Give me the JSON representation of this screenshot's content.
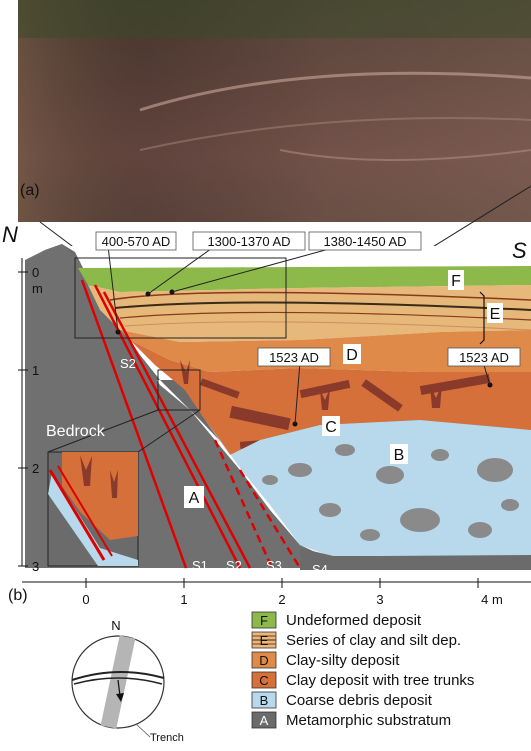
{
  "photo": {
    "panel_label": "(a)"
  },
  "section": {
    "panel_label": "(b)",
    "north": "N",
    "south": "S",
    "y_unit": "m",
    "y_ticks": [
      "0",
      "1",
      "2",
      "3"
    ],
    "x_ticks": [
      "0",
      "1",
      "2",
      "3",
      "4 m"
    ],
    "bedrock_label": "Bedrock",
    "unit_labels": [
      "F",
      "E",
      "D",
      "C",
      "B",
      "A"
    ],
    "fault_labels": [
      "S1",
      "S2",
      "S3",
      "S4",
      "S2"
    ],
    "ages": [
      "400-570 AD",
      "1300-1370 AD",
      "1380-1450 AD",
      "1523 AD",
      "1523 AD"
    ]
  },
  "stereonet": {
    "north": "N",
    "trench_label": "Trench"
  },
  "legend": [
    {
      "code": "F",
      "label": "Undeformed deposit",
      "color": "#8db84a"
    },
    {
      "code": "E",
      "label": "Series of clay and silt dep.",
      "color": "#e6b87a"
    },
    {
      "code": "D",
      "label": "Clay-silty deposit",
      "color": "#e08a4a"
    },
    {
      "code": "C",
      "label": "Clay deposit with tree trunks",
      "color": "#d6703a"
    },
    {
      "code": "B",
      "label": "Coarse debris deposit",
      "color": "#b8d8ec"
    },
    {
      "code": "A",
      "label": "Metamorphic substratum",
      "color": "#6b6b6b"
    }
  ]
}
